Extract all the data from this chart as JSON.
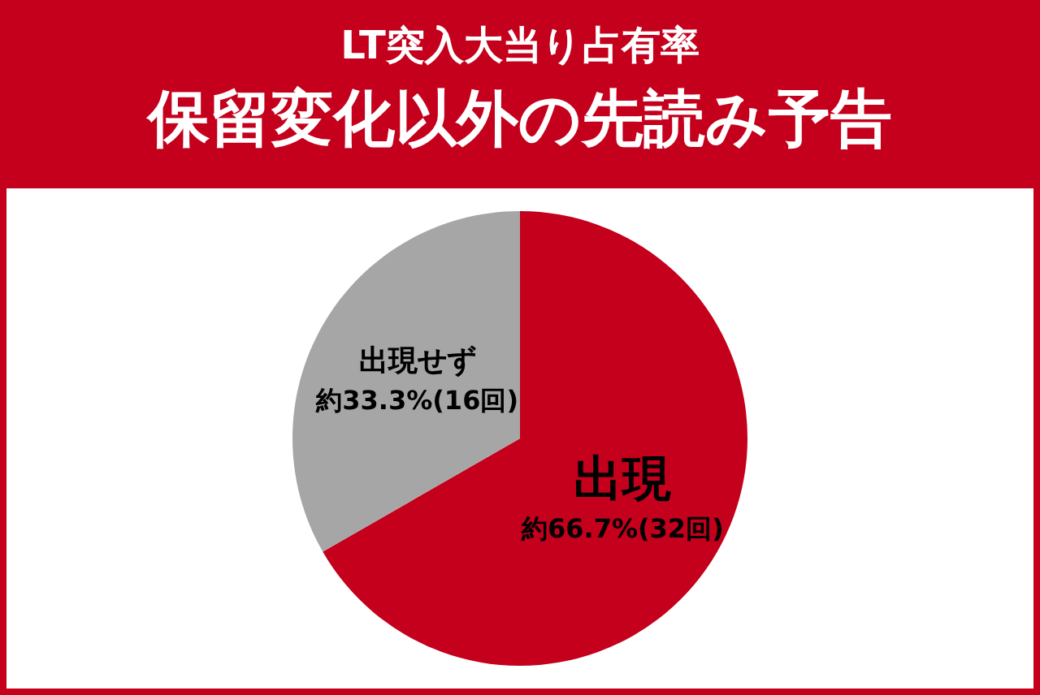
{
  "chart_data": {
    "type": "pie",
    "title": "LT突入大当り占有率",
    "subtitle": "保留変化以外の先読み予告",
    "categories": [
      "出現",
      "出現せず"
    ],
    "values": [
      66.7,
      33.3
    ],
    "colors": [
      "#c4001c",
      "#a6a6a6"
    ],
    "value_labels": [
      "約66.7%(32回)",
      "約33.3%(16回)"
    ],
    "legend": false
  }
}
